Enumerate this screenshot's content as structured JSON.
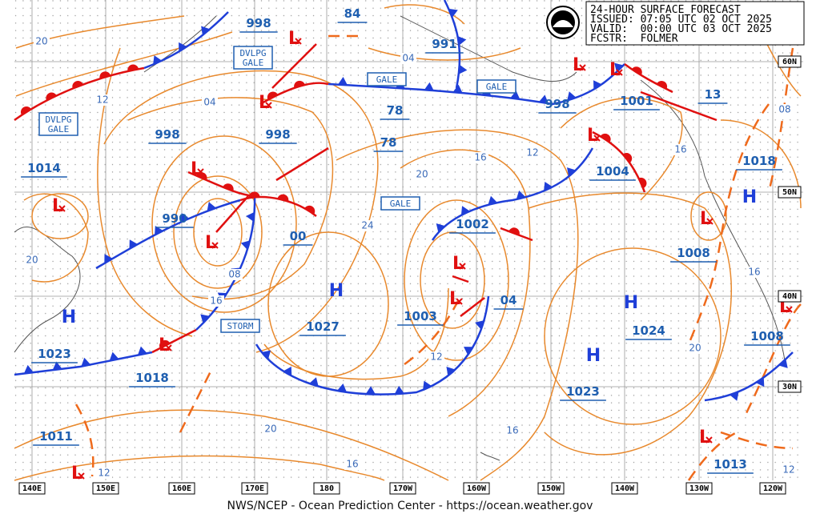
{
  "header": {
    "lines": [
      "24-HOUR SURFACE FORECAST",
      "ISSUED: 07:05 UTC 02 OCT 2025",
      "VALID:  00:00 UTC 03 OCT 2025",
      "FCSTR:  FOLMER"
    ]
  },
  "longitude_labels": [
    "140E",
    "150E",
    "160E",
    "170E",
    "180",
    "170W",
    "160W",
    "150W",
    "140W",
    "130W",
    "120W"
  ],
  "latitude_labels": [
    "60N",
    "50N",
    "40N",
    "30N"
  ],
  "pressure_labels": [
    "998",
    "84",
    "991",
    "998",
    "78",
    "78",
    "1001",
    "13",
    "998",
    "1014",
    "998",
    "1018",
    "1004",
    "990",
    "00",
    "1002",
    "1008",
    "1027",
    "1003",
    "04",
    "1024",
    "1023",
    "1018",
    "1008",
    "1023",
    "1011",
    "1013"
  ],
  "isobar_labels": [
    "20",
    "12",
    "04",
    "04",
    "16",
    "12",
    "20",
    "24",
    "20",
    "08",
    "16",
    "12",
    "20",
    "16",
    "16",
    "12",
    "08",
    "16",
    "16",
    "20",
    "12"
  ],
  "gale_labels": [
    {
      "lines": [
        "DVLPG",
        "GALE"
      ]
    },
    {
      "lines": [
        "GALE"
      ]
    },
    {
      "lines": [
        "GALE"
      ]
    },
    {
      "lines": [
        "DVLPG",
        "GALE"
      ]
    },
    {
      "lines": [
        "GALE"
      ]
    },
    {
      "lines": [
        "STORM"
      ]
    }
  ],
  "highs": [
    "H",
    "H",
    "H",
    "H",
    "H"
  ],
  "lows": [
    "L",
    "L",
    "L",
    "L",
    "L",
    "L",
    "L",
    "L",
    "L",
    "L",
    "L",
    "L",
    "L",
    "L",
    "L"
  ],
  "footer": "NWS/NCEP - Ocean Prediction Center - https://ocean.weather.gov"
}
